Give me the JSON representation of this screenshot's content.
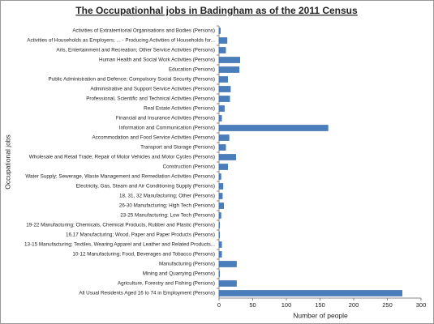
{
  "chart_data": {
    "type": "bar",
    "orientation": "horizontal",
    "title": "The Occupationhal jobs in Badingham as of the 2011 Census",
    "x_label": "Number of people",
    "y_label": "Occupational jobs",
    "categories": [
      "Activities of Extraterritorial Organisations and Bodies (Persons)",
      "Activities of Households as Employers; ... - Producing Activities of Households for...",
      "Arts, Entertainment and Recreation; Other Service Activities (Persons)",
      "Human Health and Social Work Activities (Persons)",
      "Education (Persons)",
      "Public Administration and Defence; Compulsory Social Security (Persons)",
      "Administrative and Support Service Activities (Persons)",
      "Professional, Scientific and Technical Activities (Persons)",
      "Real Estate Activities (Persons)",
      "Financial and Insurance Activities (Persons)",
      "Information and Communication (Persons)",
      "Accommodation and Food Service Activities (Persons)",
      "Transport and Storage (Persons)",
      "Wholesale and Retail Trade; Repair of Motor Vehicles and Motor Cycles (Persons)",
      "Construction (Persons)",
      "Water Supply; Sewerage, Waste Management and Remediation Activities (Persons)",
      "Electricity, Gas, Steam and Air Conditioning Supply (Persons)",
      "18, 31, 32 Manufacturing; Other (Persons)",
      "26-30 Manufacturing; High Tech (Persons)",
      "23-25 Manufacturing; Low Tech (Persons)",
      "19-22 Manufacturing; Chemicals, Chemical Products, Rubber and Plastic (Persons)",
      "16,17 Manufacturing; Wood, Paper and Paper Products (Persons)",
      "13-15 Manufacturing; Textiles, Wearing Apparel and Leather and Related Products...",
      "10-12 Manufacturing; Food, Beverages and Tobacco (Persons)",
      "Manufacturing (Persons)",
      "Mining and Quarrying (Persons)",
      "Agriculture, Forestry and Fishing (Persons)",
      "All Usual Residents Aged 16 to 74 in Employment (Persons)"
    ],
    "values": [
      2,
      12,
      10,
      31,
      30,
      13,
      17,
      16,
      8,
      4,
      162,
      15,
      10,
      25,
      13,
      3,
      6,
      5,
      7,
      3,
      1,
      1,
      4,
      4,
      26,
      1,
      26,
      272
    ],
    "color": "#4a7ebb",
    "xlim": [
      0,
      300
    ],
    "xticks": [
      0,
      50,
      100,
      150,
      200,
      250,
      300
    ],
    "grid": false
  }
}
